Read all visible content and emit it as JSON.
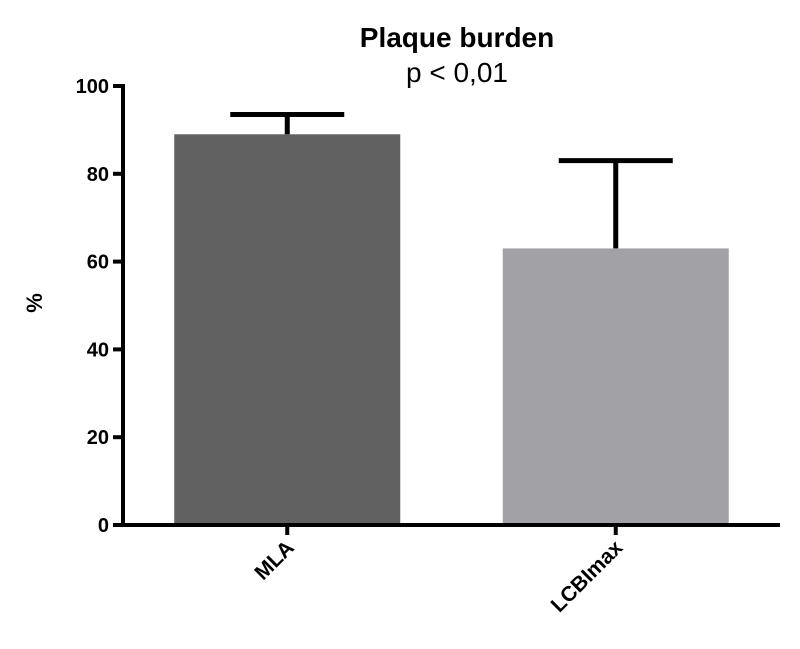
{
  "chart_data": {
    "type": "bar",
    "title": "Plaque burden",
    "subtitle": "p < 0,01",
    "ylabel": "%",
    "xlabel": "",
    "categories": [
      "MLA",
      "LCBImax"
    ],
    "values": [
      89,
      63
    ],
    "error_upper": [
      93.5,
      83
    ],
    "colors": [
      "#606060",
      "#a2a1a5"
    ],
    "ylim": [
      0,
      100
    ],
    "yticks": [
      0,
      20,
      40,
      60,
      80,
      100
    ],
    "grid": false,
    "legend": "none"
  }
}
